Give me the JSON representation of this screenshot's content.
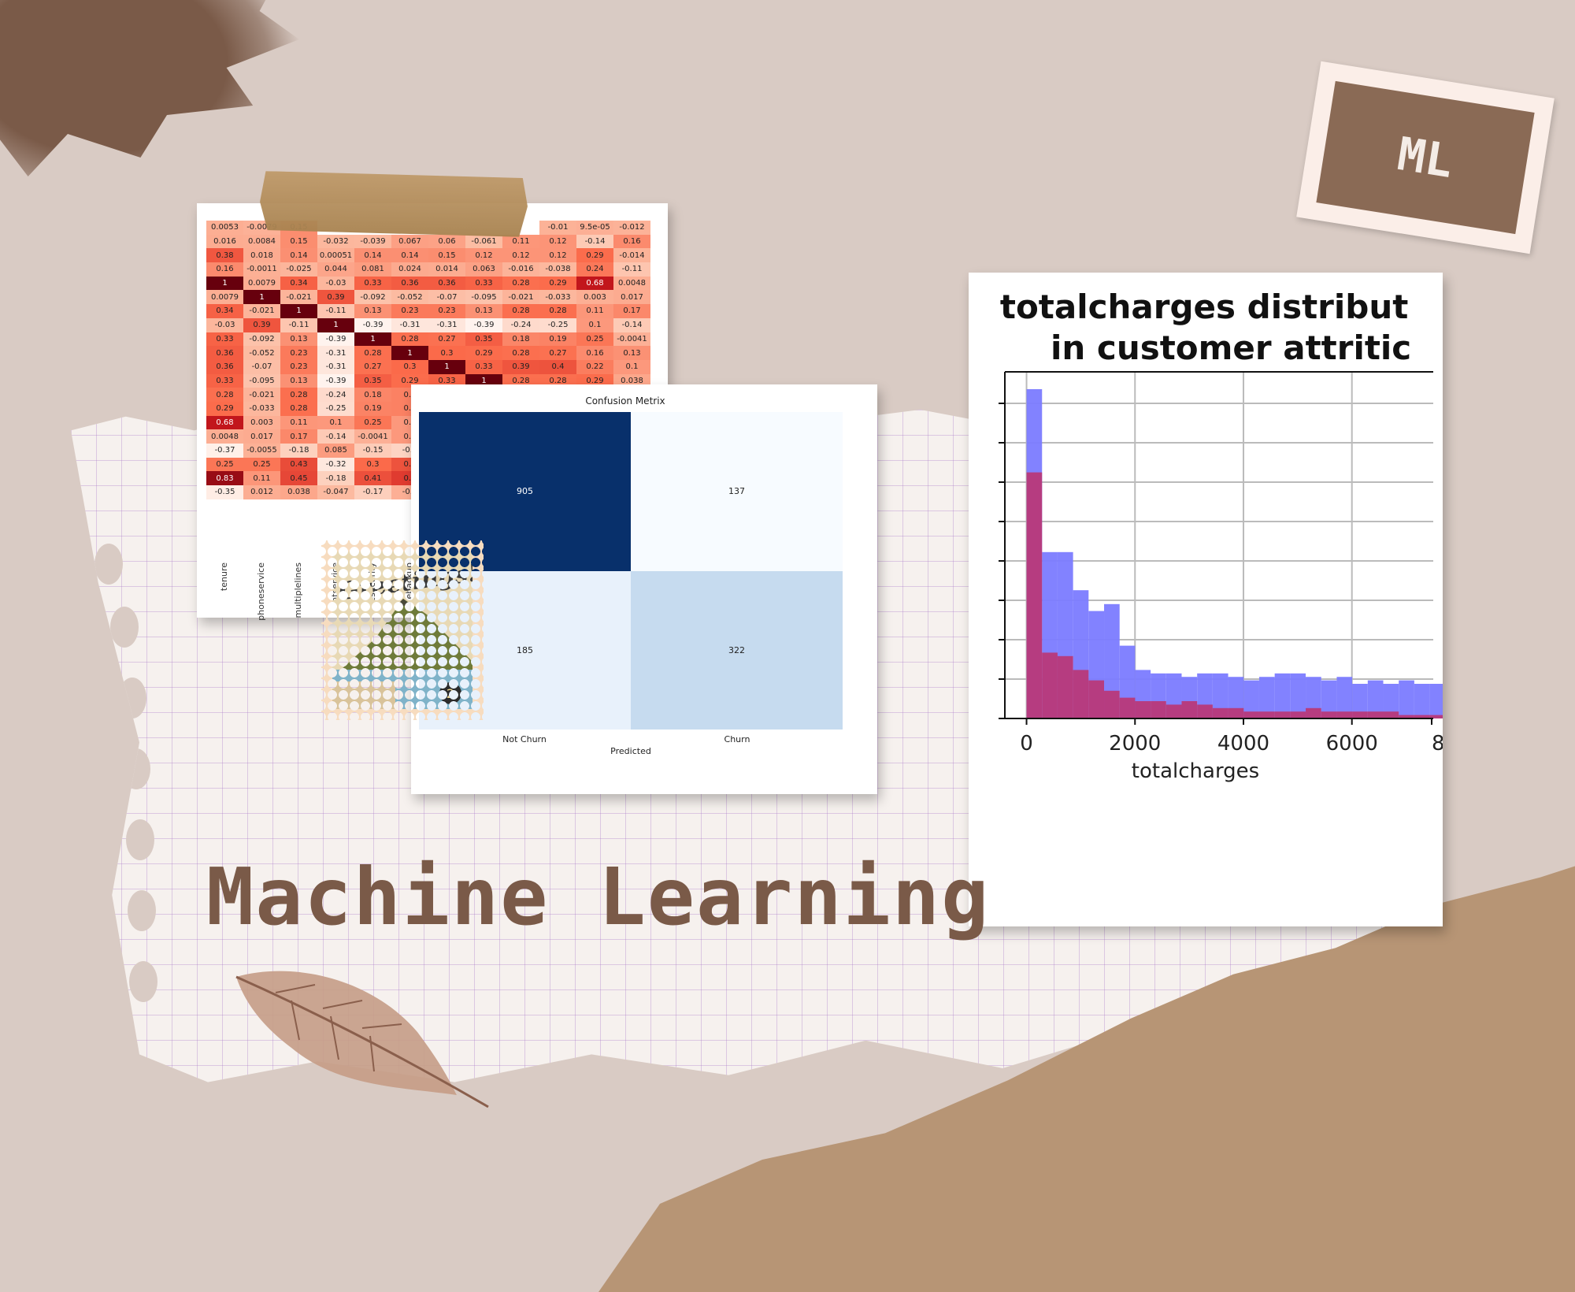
{
  "title": "Machine Learning",
  "ml_stamp": {
    "text": "ML"
  },
  "greetings_stamp": {
    "text": "Greetings!",
    "badge": "2"
  },
  "colors": {
    "background": "#d9cbc4",
    "title": "#7a5a48",
    "cm_dark": "#08306b",
    "cm_light": "#f7fbff",
    "hist_blue": "#7b7bff",
    "hist_red": "#c0306a"
  },
  "icons": [
    "leaf-illustration",
    "tape-strip",
    "paint-splash"
  ],
  "heatmap": {
    "labels": [
      "tenure",
      "phoneservice",
      "multiplelines",
      "internetservice",
      "onlinesecurity",
      "onlinebackup"
    ],
    "visible_labels": [
      "tenure",
      "phoneservice",
      "multiplelines",
      "ntservice",
      "esecurity",
      "ebackup"
    ],
    "rows": [
      [
        "0.0053",
        "-0.0079",
        "0.15",
        "",
        "",
        "",
        "",
        "",
        "",
        "-0.01",
        "9.5e-05",
        "-0.012"
      ],
      [
        "0.016",
        "0.0084",
        "0.15",
        "-0.032",
        "-0.039",
        "0.067",
        "0.06",
        "-0.061",
        "0.11",
        "0.12",
        "-0.14",
        "0.16"
      ],
      [
        "0.38",
        "0.018",
        "0.14",
        "0.00051",
        "0.14",
        "0.14",
        "0.15",
        "0.12",
        "0.12",
        "0.12",
        "0.29",
        "-0.014"
      ],
      [
        "0.16",
        "-0.0011",
        "-0.025",
        "0.044",
        "0.081",
        "0.024",
        "0.014",
        "0.063",
        "-0.016",
        "-0.038",
        "0.24",
        "-0.11"
      ],
      [
        "1",
        "0.0079",
        "0.34",
        "-0.03",
        "0.33",
        "0.36",
        "0.36",
        "0.33",
        "0.28",
        "0.29",
        "0.68",
        "0.0048"
      ],
      [
        "0.0079",
        "1",
        "-0.021",
        "0.39",
        "-0.092",
        "-0.052",
        "-0.07",
        "-0.095",
        "-0.021",
        "-0.033",
        "0.003",
        "0.017"
      ],
      [
        "0.34",
        "-0.021",
        "1",
        "-0.11",
        "0.13",
        "0.23",
        "0.23",
        "0.13",
        "0.28",
        "0.28",
        "0.11",
        "0.17"
      ],
      [
        "-0.03",
        "0.39",
        "-0.11",
        "1",
        "-0.39",
        "-0.31",
        "-0.31",
        "-0.39",
        "-0.24",
        "-0.25",
        "0.1",
        "-0.14"
      ],
      [
        "0.33",
        "-0.092",
        "0.13",
        "-0.39",
        "1",
        "0.28",
        "0.27",
        "0.35",
        "0.18",
        "0.19",
        "0.25",
        "-0.0041"
      ],
      [
        "0.36",
        "-0.052",
        "0.23",
        "-0.31",
        "0.28",
        "1",
        "0.3",
        "0.29",
        "0.28",
        "0.27",
        "0.16",
        "0.13"
      ],
      [
        "0.36",
        "-0.07",
        "0.23",
        "-0.31",
        "0.27",
        "0.3",
        "1",
        "0.33",
        "0.39",
        "0.4",
        "0.22",
        "0.1"
      ],
      [
        "0.33",
        "-0.095",
        "0.13",
        "-0.39",
        "0.35",
        "0.29",
        "0.33",
        "1",
        "0.28",
        "0.28",
        "0.29",
        "0.038"
      ],
      [
        "0.28",
        "-0.021",
        "0.28",
        "-0.24",
        "0.18",
        "0.2",
        "",
        "",
        "",
        "",
        "",
        ""
      ],
      [
        "0.29",
        "-0.033",
        "0.28",
        "-0.25",
        "0.19",
        "0.2",
        "",
        "",
        "",
        "",
        "",
        ""
      ],
      [
        "0.68",
        "0.003",
        "0.11",
        "0.1",
        "0.25",
        "0.1",
        "",
        "",
        "",
        "",
        "",
        ""
      ],
      [
        "0.0048",
        "0.017",
        "0.17",
        "-0.14",
        "-0.0041",
        "0.1",
        "",
        "",
        "",
        "",
        "",
        ""
      ],
      [
        "-0.37",
        "-0.0055",
        "-0.18",
        "0.085",
        "-0.15",
        "-0.2",
        "",
        "",
        "",
        "",
        "",
        ""
      ],
      [
        "0.25",
        "0.25",
        "0.43",
        "-0.32",
        "0.3",
        "0.4",
        "",
        "",
        "",
        "",
        "",
        ""
      ],
      [
        "0.83",
        "0.11",
        "0.45",
        "-0.18",
        "0.41",
        "0.5",
        "",
        "",
        "",
        "",
        "",
        ""
      ],
      [
        "-0.35",
        "0.012",
        "0.038",
        "-0.047",
        "-0.17",
        "-0.0",
        "",
        "",
        "",
        "",
        "",
        ""
      ]
    ]
  },
  "confusion_matrix": {
    "title": "Confusion Metrix",
    "xlabel": "Predicted",
    "x_ticks": [
      "Not Churn",
      "Churn"
    ],
    "cells": [
      [
        "905",
        "137"
      ],
      [
        "185",
        "322"
      ]
    ]
  },
  "chart_data": {
    "type": "bar",
    "title": "totalcharges distribut\nin customer attritic",
    "title_line1": "totalcharges distribut",
    "title_line2": "in customer attritic",
    "xlabel": "totalcharges",
    "x_ticks": [
      "0",
      "2000",
      "4000",
      "6000",
      "8"
    ],
    "xlim": [
      -400,
      7500
    ],
    "ylim": [
      0,
      1
    ],
    "grid": true,
    "bin_width": 286,
    "bin_start": 0,
    "series": [
      {
        "values": [
          0.95,
          0.48,
          0.48,
          0.37,
          0.31,
          0.33,
          0.21,
          0.14,
          0.13,
          0.13,
          0.12,
          0.13,
          0.13,
          0.12,
          0.11,
          0.12,
          0.13,
          0.13,
          0.12,
          0.11,
          0.12,
          0.1,
          0.11,
          0.1,
          0.11,
          0.1,
          0.1,
          0.09,
          0.07,
          0.06
        ]
      },
      {
        "values": [
          0.71,
          0.19,
          0.18,
          0.14,
          0.11,
          0.08,
          0.06,
          0.05,
          0.05,
          0.04,
          0.05,
          0.04,
          0.03,
          0.03,
          0.02,
          0.02,
          0.02,
          0.02,
          0.03,
          0.02,
          0.02,
          0.02,
          0.02,
          0.02,
          0.01,
          0.01,
          0.01,
          0.01,
          0.01,
          0.01
        ]
      }
    ]
  }
}
